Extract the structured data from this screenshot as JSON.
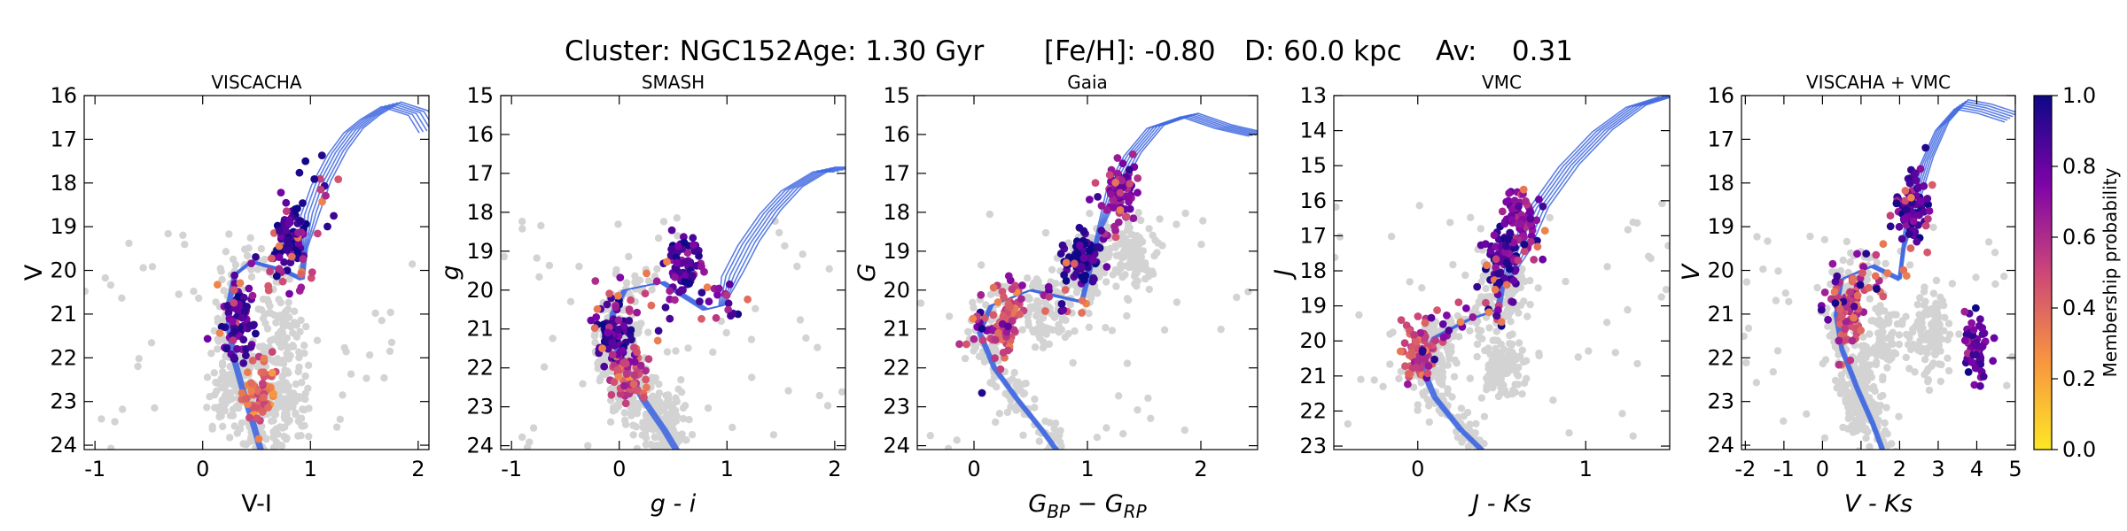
{
  "suptitle": {
    "cluster": "Cluster: NGC152",
    "age": "Age: 1.30 Gyr",
    "feh": "[Fe/H]: -0.80",
    "dist": "D: 60.0 kpc",
    "av": "Av:    0.31"
  },
  "colorbar": {
    "label": "Membership probability",
    "ticks": [
      0.0,
      0.2,
      0.4,
      0.6,
      0.8,
      1.0
    ],
    "tick_labels": [
      "0.0",
      "0.2",
      "0.4",
      "0.6",
      "0.8",
      "1.0"
    ],
    "colormap": [
      "#fde725",
      "#f89540",
      "#cc4778",
      "#7e03a8",
      "#0d0887"
    ]
  },
  "colors": {
    "isochrone": "#4169e1",
    "field": "#d3d3d3"
  },
  "chart_data": [
    {
      "type": "scatter",
      "title": "VISCACHA",
      "xlabel": "V-I",
      "ylabel": "V",
      "xlim": [
        -1.1,
        2.1
      ],
      "ylim": [
        24.1,
        16.0
      ],
      "xticks": [
        -1,
        0,
        1,
        2
      ],
      "xtick_labels": [
        "-1",
        "0",
        "1",
        "2"
      ],
      "yticks": [
        16,
        17,
        18,
        19,
        20,
        21,
        22,
        23,
        24
      ],
      "ytick_labels": [
        "16",
        "17",
        "18",
        "19",
        "20",
        "21",
        "22",
        "23",
        "24"
      ],
      "isochrone": [
        [
          0.55,
          24.2
        ],
        [
          0.48,
          23.6
        ],
        [
          0.38,
          22.8
        ],
        [
          0.3,
          22.1
        ],
        [
          0.25,
          21.4
        ],
        [
          0.24,
          20.8
        ],
        [
          0.3,
          20.1
        ],
        [
          0.45,
          19.8
        ],
        [
          0.75,
          20.0
        ],
        [
          0.92,
          20.2
        ],
        [
          0.95,
          19.5
        ],
        [
          1.0,
          18.7
        ],
        [
          1.1,
          18.0
        ],
        [
          1.25,
          17.3
        ],
        [
          1.4,
          16.8
        ],
        [
          1.55,
          16.5
        ],
        [
          1.75,
          16.2
        ],
        [
          2.0,
          16.4
        ],
        [
          2.1,
          16.8
        ]
      ],
      "isochrone_width": 0.18,
      "field_centroids": [
        [
          0.7,
          21.5
        ],
        [
          0.75,
          23.0
        ],
        [
          0.3,
          22.5
        ]
      ],
      "members_mp_centroids": [
        [
          0.35,
          21.2,
          0.85
        ],
        [
          0.55,
          22.8,
          0.4
        ],
        [
          0.8,
          19.2,
          0.9
        ]
      ]
    },
    {
      "type": "scatter",
      "title": "SMASH",
      "xlabel": "g - i",
      "ylabel": "g",
      "xlim": [
        -1.1,
        2.1
      ],
      "ylim": [
        24.1,
        15.0
      ],
      "xticks": [
        -1,
        0,
        1,
        2
      ],
      "xtick_labels": [
        "-1",
        "0",
        "1",
        "2"
      ],
      "yticks": [
        15,
        16,
        17,
        18,
        19,
        20,
        21,
        22,
        23,
        24
      ],
      "ytick_labels": [
        "15",
        "16",
        "17",
        "18",
        "19",
        "20",
        "21",
        "22",
        "23",
        "24"
      ],
      "isochrone": [
        [
          0.55,
          24.2
        ],
        [
          0.42,
          23.6
        ],
        [
          0.22,
          22.8
        ],
        [
          0.06,
          22.0
        ],
        [
          -0.05,
          21.3
        ],
        [
          -0.06,
          20.6
        ],
        [
          0.05,
          20.0
        ],
        [
          0.4,
          19.8
        ],
        [
          0.8,
          20.5
        ],
        [
          0.95,
          20.4
        ],
        [
          1.05,
          19.6
        ],
        [
          1.2,
          18.8
        ],
        [
          1.4,
          18.0
        ],
        [
          1.6,
          17.4
        ],
        [
          1.9,
          16.9
        ],
        [
          2.1,
          16.9
        ]
      ],
      "isochrone_width": 0.2,
      "field_centroids": [
        [
          0.1,
          22.5
        ],
        [
          0.4,
          23.3
        ],
        [
          0.0,
          21.5
        ]
      ],
      "members_mp_centroids": [
        [
          -0.05,
          21.0,
          0.9
        ],
        [
          0.1,
          22.2,
          0.5
        ],
        [
          0.6,
          19.4,
          0.85
        ]
      ]
    },
    {
      "type": "scatter",
      "title": "Gaia",
      "xlabel": "G_BP - G_RP",
      "ylabel": "G",
      "xlim": [
        -0.5,
        2.5
      ],
      "ylim": [
        24.1,
        15.0
      ],
      "xticks": [
        0,
        1,
        2
      ],
      "xtick_labels": [
        "0",
        "1",
        "2"
      ],
      "yticks": [
        15,
        16,
        17,
        18,
        19,
        20,
        21,
        22,
        23,
        24
      ],
      "ytick_labels": [
        "15",
        "16",
        "17",
        "18",
        "19",
        "20",
        "21",
        "22",
        "23",
        "24"
      ],
      "isochrone": [
        [
          0.75,
          24.2
        ],
        [
          0.6,
          23.6
        ],
        [
          0.38,
          22.8
        ],
        [
          0.18,
          22.0
        ],
        [
          0.05,
          21.1
        ],
        [
          0.15,
          20.4
        ],
        [
          0.5,
          20.0
        ],
        [
          0.95,
          20.3
        ],
        [
          1.02,
          19.5
        ],
        [
          1.1,
          18.5
        ],
        [
          1.25,
          17.3
        ],
        [
          1.4,
          16.5
        ],
        [
          1.6,
          15.8
        ],
        [
          1.9,
          15.5
        ],
        [
          2.2,
          15.8
        ],
        [
          2.5,
          16.0
        ]
      ],
      "isochrone_width": 0.15,
      "field_centroids": [
        [
          0.6,
          20.7
        ],
        [
          1.0,
          19.5
        ],
        [
          1.4,
          19.0
        ]
      ],
      "members_mp_centroids": [
        [
          0.3,
          20.8,
          0.5
        ],
        [
          0.95,
          19.2,
          0.9
        ],
        [
          1.3,
          17.5,
          0.7
        ]
      ]
    },
    {
      "type": "scatter",
      "title": "VMC",
      "xlabel": "J - Ks",
      "ylabel": "J",
      "xlim": [
        -0.5,
        1.5
      ],
      "ylim": [
        23.1,
        13.0
      ],
      "xticks": [
        0,
        1
      ],
      "xtick_labels": [
        "0",
        "1"
      ],
      "yticks": [
        13,
        14,
        15,
        16,
        17,
        18,
        19,
        20,
        21,
        22,
        23
      ],
      "ytick_labels": [
        "13",
        "14",
        "15",
        "16",
        "17",
        "18",
        "19",
        "20",
        "21",
        "22",
        "23"
      ],
      "isochrone": [
        [
          0.4,
          23.2
        ],
        [
          0.25,
          22.5
        ],
        [
          0.1,
          21.6
        ],
        [
          0.02,
          20.7
        ],
        [
          0.1,
          19.9
        ],
        [
          0.3,
          19.4
        ],
        [
          0.48,
          19.1
        ],
        [
          0.5,
          18.5
        ],
        [
          0.6,
          17.5
        ],
        [
          0.72,
          16.2
        ],
        [
          0.9,
          15.0
        ],
        [
          1.1,
          14.0
        ],
        [
          1.3,
          13.3
        ],
        [
          1.5,
          13.0
        ]
      ],
      "isochrone_width": 0.12,
      "field_centroids": [
        [
          0.1,
          20.5
        ],
        [
          0.5,
          20.7
        ],
        [
          0.5,
          18.5
        ]
      ],
      "members_mp_centroids": [
        [
          0.5,
          17.5,
          0.85
        ],
        [
          0.0,
          20.3,
          0.5
        ],
        [
          0.6,
          16.5,
          0.7
        ]
      ]
    },
    {
      "type": "scatter",
      "title": "VISCAHA + VMC",
      "xlabel": "V - Ks",
      "ylabel": "V",
      "xlim": [
        -2.1,
        5.0
      ],
      "ylim": [
        24.1,
        16.0
      ],
      "xticks": [
        -2,
        -1,
        0,
        1,
        2,
        3,
        4,
        5
      ],
      "xtick_labels": [
        "-2",
        "-1",
        "0",
        "1",
        "2",
        "3",
        "4",
        "5"
      ],
      "yticks": [
        16,
        17,
        18,
        19,
        20,
        21,
        22,
        23,
        24
      ],
      "ytick_labels": [
        "16",
        "17",
        "18",
        "19",
        "20",
        "21",
        "22",
        "23",
        "24"
      ],
      "isochrone": [
        [
          1.6,
          24.2
        ],
        [
          1.3,
          23.5
        ],
        [
          0.9,
          22.7
        ],
        [
          0.5,
          21.8
        ],
        [
          0.35,
          21.0
        ],
        [
          0.5,
          20.2
        ],
        [
          1.3,
          19.9
        ],
        [
          2.0,
          20.2
        ],
        [
          2.1,
          19.5
        ],
        [
          2.35,
          18.5
        ],
        [
          2.7,
          17.5
        ],
        [
          3.1,
          16.7
        ],
        [
          3.6,
          16.2
        ],
        [
          4.2,
          16.3
        ],
        [
          4.9,
          16.5
        ]
      ],
      "isochrone_width": 0.35,
      "field_centroids": [
        [
          1.5,
          21.5
        ],
        [
          2.8,
          21.5
        ],
        [
          1.0,
          22.8
        ]
      ],
      "members_mp_centroids": [
        [
          2.3,
          18.6,
          0.85
        ],
        [
          0.7,
          21.0,
          0.5
        ],
        [
          4.0,
          21.8,
          0.8
        ]
      ]
    }
  ]
}
